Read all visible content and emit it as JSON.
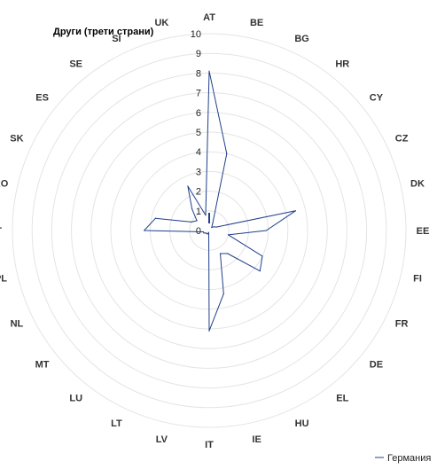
{
  "chart_data": {
    "type": "radar",
    "title": "Други (трети страни)",
    "categories": [
      "AT",
      "BE",
      "BG",
      "HR",
      "CY",
      "CZ",
      "DK",
      "EE",
      "FI",
      "FR",
      "DE",
      "EL",
      "HU",
      "IE",
      "IT",
      "LV",
      "LT",
      "LU",
      "MT",
      "NL",
      "PL",
      "PT",
      "RO",
      "SK",
      "ES",
      "SE",
      "SI",
      "UK"
    ],
    "ticks": [
      "0",
      "1",
      "2",
      "3",
      "4",
      "5",
      "6",
      "7",
      "8",
      "9",
      "10"
    ],
    "rlim": [
      0,
      10
    ],
    "grid": true,
    "legend_position": "bottom-right",
    "series": [
      {
        "name": "Германия",
        "color": "#1f3f8a",
        "values": [
          8.1,
          4.0,
          0.4,
          0.2,
          0.3,
          0.4,
          4.5,
          2.9,
          1.0,
          3.0,
          3.3,
          1.5,
          1.3,
          3.3,
          5.1,
          0.1,
          0.2,
          0.2,
          0.2,
          0.3,
          0.3,
          3.3,
          2.8,
          1.0,
          0.8,
          1.4,
          2.5,
          0.8
        ]
      }
    ]
  }
}
